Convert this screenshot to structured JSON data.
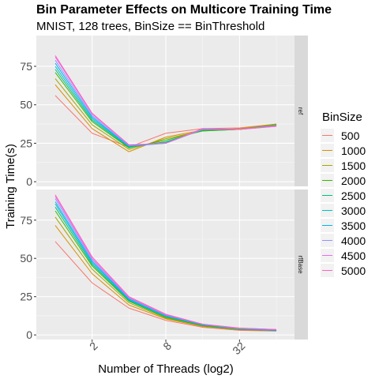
{
  "chart_data": {
    "type": "line",
    "title": "Bin Parameter Effects on Multicore Training Time",
    "subtitle": "MNIST, 128 trees, BinSize == BinThreshold",
    "xlabel": "Number of Threads (log2)",
    "ylabel": "Training Time(s)",
    "x": [
      1,
      2,
      4,
      8,
      16,
      32,
      64
    ],
    "x_ticks": [
      2,
      8,
      32
    ],
    "x_tick_labels": [
      "2",
      "8",
      "32"
    ],
    "x_scale": "log2",
    "y_ticks": [
      0,
      25,
      50,
      75
    ],
    "y_tick_labels": [
      "0",
      "25",
      "50",
      "75"
    ],
    "ylim": [
      -3,
      95
    ],
    "grid": true,
    "legend": {
      "title": "BinSize",
      "position": "right"
    },
    "colors": {
      "500": "#F8766D",
      "1000": "#D89000",
      "1500": "#A3A500",
      "2000": "#39B600",
      "2500": "#00BF7D",
      "3000": "#00BFC4",
      "3500": "#00B0F6",
      "4000": "#9590FF",
      "4500": "#E76BF3",
      "5000": "#FF62BC"
    },
    "panels": [
      {
        "strip": "ref",
        "series": [
          {
            "name": "500",
            "values": [
              56,
              31.5,
              22.5,
              31.5,
              34.5,
              35,
              37.5
            ]
          },
          {
            "name": "1000",
            "values": [
              63,
              34.5,
              19.5,
              29,
              33.5,
              34.5,
              37.5
            ]
          },
          {
            "name": "1500",
            "values": [
              67,
              37,
              21,
              28,
              33,
              34,
              37
            ]
          },
          {
            "name": "2000",
            "values": [
              71,
              39,
              22,
              27,
              33,
              34,
              37
            ]
          },
          {
            "name": "2500",
            "values": [
              73,
              40,
              22.5,
              26,
              33.5,
              34,
              36.5
            ]
          },
          {
            "name": "3000",
            "values": [
              75,
              41,
              23,
              25.5,
              34,
              34,
              36.5
            ]
          },
          {
            "name": "3500",
            "values": [
              77,
              42,
              23,
              25,
              34,
              34,
              36.5
            ]
          },
          {
            "name": "4000",
            "values": [
              79,
              43,
              23.5,
              25,
              34,
              34,
              36.5
            ]
          },
          {
            "name": "4500",
            "values": [
              81,
              44,
              24,
              25,
              34.5,
              34,
              36
            ]
          },
          {
            "name": "5000",
            "values": [
              82,
              44.5,
              24,
              25,
              34.5,
              34,
              36
            ]
          }
        ]
      },
      {
        "strip": "rfBase",
        "series": [
          {
            "name": "500",
            "values": [
              61,
              34,
              17.5,
              9.5,
              5,
              3,
              2.5
            ]
          },
          {
            "name": "1000",
            "values": [
              71.5,
              40,
              19.5,
              10.5,
              5.5,
              3.5,
              3
            ]
          },
          {
            "name": "1500",
            "values": [
              77,
              43,
              21,
              11,
              6,
              3.5,
              3
            ]
          },
          {
            "name": "2000",
            "values": [
              81,
              45,
              22,
              11.5,
              6,
              3.5,
              3
            ]
          },
          {
            "name": "2500",
            "values": [
              83.5,
              46,
              22.5,
              12,
              6.5,
              4,
              3
            ]
          },
          {
            "name": "3000",
            "values": [
              85.5,
              47,
              23,
              12,
              6.5,
              4,
              3
            ]
          },
          {
            "name": "3500",
            "values": [
              87,
              48,
              23.5,
              12.5,
              6.5,
              4,
              3
            ]
          },
          {
            "name": "4000",
            "values": [
              89,
              49,
              24,
              13,
              7,
              4,
              3.5
            ]
          },
          {
            "name": "4500",
            "values": [
              90.5,
              50,
              24.5,
              13,
              7,
              4.5,
              3.5
            ]
          },
          {
            "name": "5000",
            "values": [
              91.5,
              51,
              25,
              13.5,
              7,
              4.5,
              3.5
            ]
          }
        ]
      }
    ]
  }
}
